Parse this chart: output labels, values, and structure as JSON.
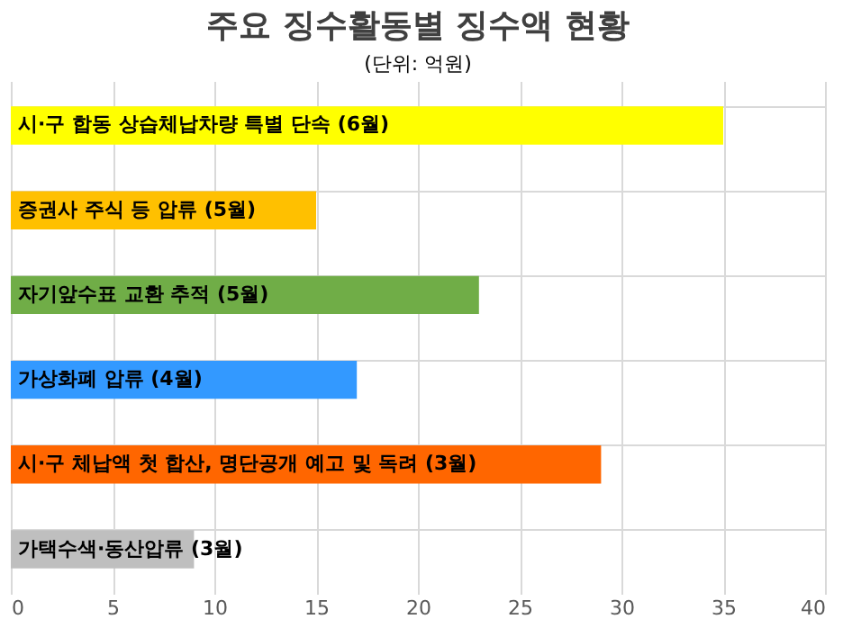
{
  "chart_data": {
    "type": "bar",
    "orientation": "horizontal",
    "title": "주요 징수활동별 징수액 현황",
    "subtitle": "(단위: 억원)",
    "categories": [
      "시·구 합동 상습체납차량 특별 단속 (6월)",
      "증권사 주식 등 압류 (5월)",
      "자기앞수표 교환 추적 (5월)",
      "가상화폐 압류 (4월)",
      "시·구 체납액 첫 합산, 명단공개 예고 및 독려 (3월)",
      "가택수색·동산압류 (3월)"
    ],
    "values": [
      35,
      15,
      23,
      17,
      29,
      9
    ],
    "colors": [
      "#ffff00",
      "#ffc000",
      "#70ad47",
      "#3399ff",
      "#ff6600",
      "#bfbfbf"
    ],
    "xlim": [
      0,
      40
    ],
    "xticks": [
      0,
      5,
      10,
      15,
      20,
      25,
      30,
      35,
      40
    ],
    "grid": true
  }
}
